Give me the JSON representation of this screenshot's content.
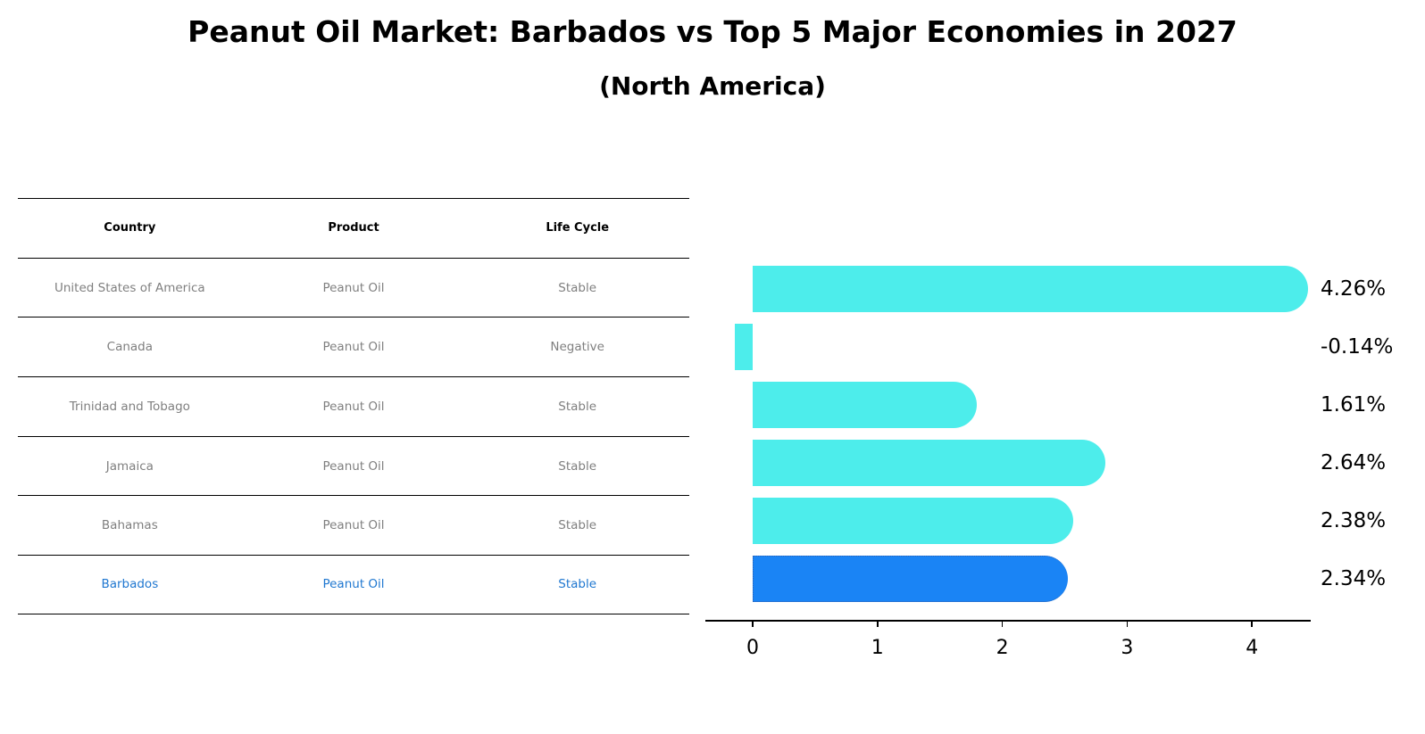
{
  "header": {
    "title": "Peanut Oil Market: Barbados vs Top 5 Major Economies in 2027",
    "subtitle": "(North America)"
  },
  "table": {
    "columns": [
      "Country",
      "Product",
      "Life Cycle"
    ],
    "rows": [
      {
        "country": "United States of America",
        "product": "Peanut Oil",
        "life_cycle": "Stable"
      },
      {
        "country": "Canada",
        "product": "Peanut Oil",
        "life_cycle": "Negative"
      },
      {
        "country": "Trinidad and Tobago",
        "product": "Peanut Oil",
        "life_cycle": "Stable"
      },
      {
        "country": "Jamaica",
        "product": "Peanut Oil",
        "life_cycle": "Stable"
      },
      {
        "country": "Bahamas",
        "product": "Peanut Oil",
        "life_cycle": "Stable"
      },
      {
        "country": "Barbados",
        "product": "Peanut Oil",
        "life_cycle": "Stable",
        "highlight": true
      }
    ]
  },
  "colors": {
    "bar": "#4dedeb",
    "highlight_bar": "#1a84f5",
    "highlight_text": "#1f77d0",
    "muted_text": "#7f7f7f"
  },
  "chart_data": {
    "type": "bar",
    "orientation": "horizontal",
    "title": "Peanut Oil Market: Barbados vs Top 5 Major Economies in 2027",
    "subtitle": "(North America)",
    "categories": [
      "United States of America",
      "Canada",
      "Trinidad and Tobago",
      "Jamaica",
      "Bahamas",
      "Barbados"
    ],
    "values": [
      4.26,
      -0.14,
      1.61,
      2.64,
      2.38,
      2.34
    ],
    "value_labels": [
      "4.26%",
      "-0.14%",
      "1.61%",
      "2.64%",
      "2.38%",
      "2.34%"
    ],
    "highlight": "Barbados",
    "xlabel": "",
    "ylabel": "",
    "xlim": [
      -0.37,
      4.47
    ],
    "xticks": [
      0,
      1,
      2,
      3,
      4
    ],
    "xtick_labels": [
      "0",
      "1",
      "2",
      "3",
      "4"
    ],
    "grid": false,
    "legend": null
  }
}
